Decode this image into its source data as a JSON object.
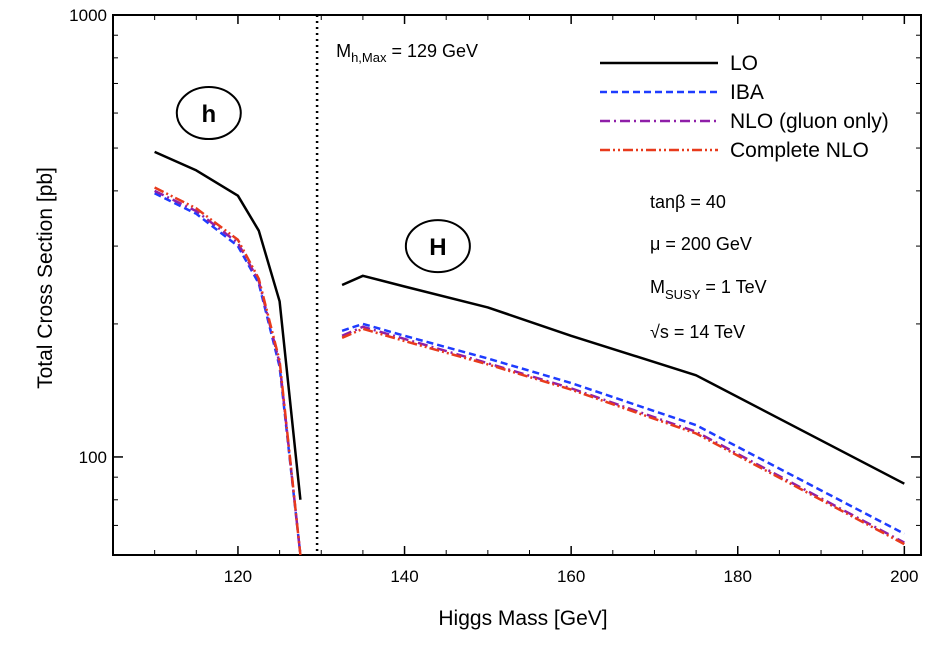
{
  "chart_data": {
    "type": "line",
    "title": "",
    "xlabel": "Higgs Mass  [GeV]",
    "ylabel": "Total Cross Section  [pb]",
    "xlim": [
      105,
      202
    ],
    "ylim": [
      60,
      1000
    ],
    "yscale": "log",
    "grid": false,
    "legend_position": "top-right",
    "x_ticks": [
      120,
      140,
      160,
      180,
      200
    ],
    "x_tick_labels": [
      "120",
      "140",
      "160",
      "180",
      "200"
    ],
    "y_ticks": [
      100,
      1000
    ],
    "y_tick_labels": [
      "100",
      "1000"
    ],
    "series": [
      {
        "name": "LO",
        "color": "#000000",
        "dash": "",
        "segments": [
          {
            "x": [
              110,
              115,
              120,
              122.5,
              125,
              127.5
            ],
            "y": [
              490,
              445,
              390,
              325,
              225,
              80
            ]
          },
          {
            "x": [
              132.5,
              135,
              140,
              150,
              160,
              175,
              200
            ],
            "y": [
              245,
              257,
              243,
              218,
              188,
              153,
              87
            ]
          }
        ]
      },
      {
        "name": "IBA",
        "color": "#1e3cff",
        "dash": "7,4",
        "segments": [
          {
            "x": [
              110,
              115,
              120,
              122.5,
              125,
              127.5
            ],
            "y": [
              395,
              355,
              300,
              247,
              160,
              60
            ]
          },
          {
            "x": [
              132.5,
              135,
              140,
              150,
              160,
              175,
              200
            ],
            "y": [
              193,
              200,
              188,
              167,
              147,
              118,
              67
            ]
          }
        ]
      },
      {
        "name": "NLO (gluon only)",
        "color": "#8f1fa8",
        "dash": "10,4,2,4",
        "segments": [
          {
            "x": [
              110,
              115,
              120,
              122.5,
              125,
              127.5
            ],
            "y": [
              400,
              360,
              305,
              250,
              163,
              60
            ]
          },
          {
            "x": [
              132.5,
              135,
              140,
              150,
              160,
              175,
              200
            ],
            "y": [
              188,
              197,
              185,
              163,
              143,
              114,
              64
            ]
          }
        ]
      },
      {
        "name": "Complete NLO",
        "color": "#e83a1c",
        "dash": "10,3,2,3,2,3",
        "segments": [
          {
            "x": [
              110,
              115,
              120,
              122.5,
              125,
              127.5
            ],
            "y": [
              407,
              365,
              310,
              253,
              165,
              60
            ]
          },
          {
            "x": [
              132.5,
              135,
              140,
              150,
              160,
              175,
              200
            ],
            "y": [
              186,
              195,
              183,
              162,
              142,
              113,
              63.5
            ]
          }
        ]
      }
    ],
    "vertical_line": {
      "x": 129.5,
      "label_main": "M",
      "label_sub": "h,Max",
      "label_rest": " = 129 GeV"
    },
    "region_labels": [
      {
        "text": "h",
        "x": 116.5,
        "y": 600
      },
      {
        "text": "H",
        "x": 144,
        "y": 300
      }
    ],
    "annotations": [
      {
        "main": "tanβ = 40",
        "sub": "",
        "rest": ""
      },
      {
        "main": "μ = 200 GeV",
        "sub": "",
        "rest": ""
      },
      {
        "main": "M",
        "sub": "SUSY",
        "rest": " = 1 TeV"
      },
      {
        "main": "√s = 14 TeV",
        "sub": "",
        "rest": ""
      }
    ]
  }
}
